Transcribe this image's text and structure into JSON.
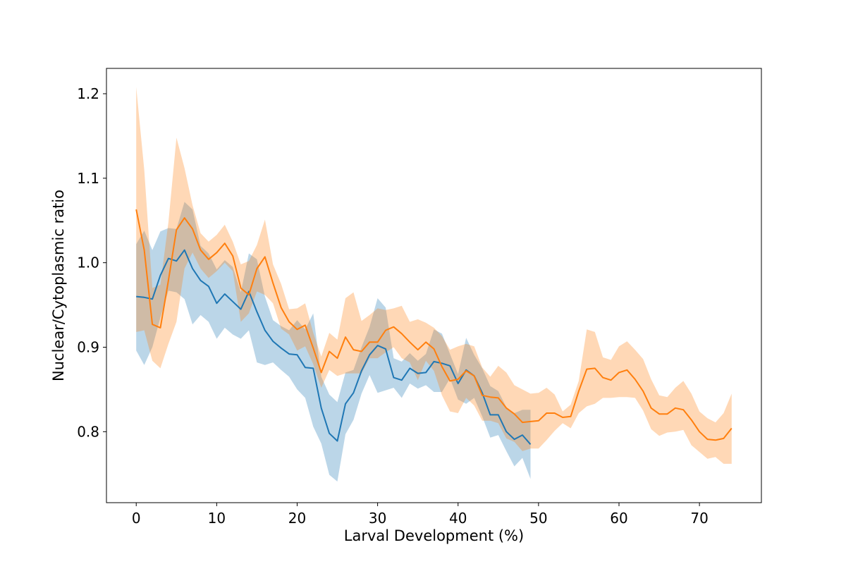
{
  "chart_data": {
    "type": "line",
    "title": "",
    "xlabel": "Larval Development (%)",
    "ylabel": "Nuclear/Cytoplasmic ratio",
    "xlim": [
      -3.7,
      77.7
    ],
    "ylim": [
      0.716,
      1.23
    ],
    "xticks": [
      0,
      10,
      20,
      30,
      40,
      50,
      60,
      70
    ],
    "yticks": [
      0.8,
      0.9,
      1.0,
      1.1,
      1.2
    ],
    "xtick_labels": [
      "0",
      "10",
      "20",
      "30",
      "40",
      "50",
      "60",
      "70"
    ],
    "ytick_labels": [
      "0.8",
      "0.9",
      "1.0",
      "1.1",
      "1.2"
    ],
    "grid": false,
    "legend": "none",
    "series": [
      {
        "color": "#1f77b4",
        "band_color": "#1f77b4",
        "band_opacity": 0.3,
        "x": [
          0,
          1,
          2,
          3,
          4,
          5,
          6,
          7,
          8,
          9,
          10,
          11,
          12,
          13,
          14,
          15,
          16,
          17,
          18,
          19,
          20,
          21,
          22,
          23,
          24,
          25,
          26,
          27,
          28,
          29,
          30,
          31,
          32,
          33,
          34,
          35,
          36,
          37,
          38,
          39,
          40,
          41,
          42,
          43,
          44,
          45,
          46,
          47,
          48,
          49
        ],
        "mean": [
          0.96,
          0.959,
          0.957,
          0.985,
          1.005,
          1.002,
          1.015,
          0.993,
          0.979,
          0.972,
          0.952,
          0.963,
          0.954,
          0.945,
          0.966,
          0.942,
          0.92,
          0.907,
          0.899,
          0.892,
          0.891,
          0.876,
          0.875,
          0.828,
          0.798,
          0.789,
          0.833,
          0.846,
          0.872,
          0.891,
          0.902,
          0.898,
          0.864,
          0.861,
          0.875,
          0.869,
          0.87,
          0.883,
          0.881,
          0.878,
          0.857,
          0.873,
          0.866,
          0.846,
          0.82,
          0.82,
          0.8,
          0.791,
          0.796,
          0.785
        ],
        "upper": [
          1.022,
          1.038,
          1.015,
          1.037,
          1.041,
          1.04,
          1.072,
          1.063,
          1.02,
          1.011,
          0.992,
          1.003,
          0.995,
          0.965,
          1.011,
          1.004,
          0.96,
          0.932,
          0.925,
          0.92,
          0.932,
          0.921,
          0.94,
          0.865,
          0.844,
          0.835,
          0.87,
          0.873,
          0.9,
          0.924,
          0.958,
          0.947,
          0.887,
          0.883,
          0.893,
          0.884,
          0.892,
          0.921,
          0.916,
          0.892,
          0.868,
          0.911,
          0.891,
          0.875,
          0.854,
          0.848,
          0.829,
          0.822,
          0.826,
          0.826
        ],
        "lower": [
          0.896,
          0.879,
          0.9,
          0.935,
          0.967,
          0.965,
          0.957,
          0.927,
          0.938,
          0.93,
          0.91,
          0.923,
          0.915,
          0.91,
          0.92,
          0.882,
          0.879,
          0.882,
          0.873,
          0.865,
          0.85,
          0.84,
          0.806,
          0.786,
          0.749,
          0.741,
          0.797,
          0.814,
          0.845,
          0.867,
          0.846,
          0.849,
          0.852,
          0.84,
          0.857,
          0.851,
          0.855,
          0.847,
          0.847,
          0.863,
          0.838,
          0.833,
          0.84,
          0.818,
          0.793,
          0.796,
          0.777,
          0.759,
          0.769,
          0.744
        ]
      },
      {
        "color": "#ff7f0e",
        "band_color": "#ff7f0e",
        "band_opacity": 0.3,
        "x": [
          0,
          1,
          2,
          3,
          4,
          5,
          6,
          7,
          8,
          9,
          10,
          11,
          12,
          13,
          14,
          15,
          16,
          17,
          18,
          19,
          20,
          21,
          22,
          23,
          24,
          25,
          26,
          27,
          28,
          29,
          30,
          31,
          32,
          33,
          34,
          35,
          36,
          37,
          38,
          39,
          40,
          41,
          42,
          43,
          44,
          45,
          46,
          47,
          48,
          49,
          50,
          51,
          52,
          53,
          54,
          55,
          56,
          57,
          58,
          59,
          60,
          61,
          62,
          63,
          64,
          65,
          66,
          67,
          68,
          69,
          70,
          71,
          72,
          73,
          74
        ],
        "mean": [
          1.063,
          1.015,
          0.927,
          0.923,
          0.979,
          1.039,
          1.053,
          1.04,
          1.015,
          1.004,
          1.012,
          1.023,
          1.008,
          0.97,
          0.962,
          0.993,
          1.007,
          0.976,
          0.947,
          0.93,
          0.921,
          0.926,
          0.899,
          0.87,
          0.895,
          0.887,
          0.912,
          0.897,
          0.895,
          0.906,
          0.906,
          0.92,
          0.924,
          0.916,
          0.906,
          0.897,
          0.906,
          0.898,
          0.877,
          0.86,
          0.862,
          0.872,
          0.866,
          0.843,
          0.841,
          0.84,
          0.828,
          0.821,
          0.811,
          0.812,
          0.813,
          0.822,
          0.822,
          0.817,
          0.818,
          0.848,
          0.874,
          0.875,
          0.864,
          0.861,
          0.87,
          0.873,
          0.862,
          0.848,
          0.828,
          0.821,
          0.821,
          0.828,
          0.826,
          0.814,
          0.8,
          0.791,
          0.79,
          0.792,
          0.804
        ],
        "upper": [
          1.208,
          1.11,
          0.97,
          0.974,
          1.048,
          1.148,
          1.112,
          1.068,
          1.035,
          1.025,
          1.033,
          1.045,
          1.025,
          0.998,
          1.002,
          1.021,
          1.051,
          0.998,
          0.975,
          0.945,
          0.946,
          0.952,
          0.917,
          0.889,
          0.917,
          0.909,
          0.958,
          0.965,
          0.931,
          0.938,
          0.946,
          0.944,
          0.946,
          0.949,
          0.93,
          0.933,
          0.929,
          0.923,
          0.913,
          0.897,
          0.901,
          0.904,
          0.901,
          0.876,
          0.865,
          0.878,
          0.87,
          0.855,
          0.85,
          0.845,
          0.846,
          0.852,
          0.844,
          0.824,
          0.832,
          0.86,
          0.921,
          0.918,
          0.888,
          0.885,
          0.901,
          0.907,
          0.897,
          0.886,
          0.862,
          0.843,
          0.841,
          0.852,
          0.86,
          0.845,
          0.824,
          0.816,
          0.811,
          0.822,
          0.845
        ],
        "lower": [
          0.918,
          0.92,
          0.884,
          0.875,
          0.904,
          0.93,
          0.993,
          1.012,
          0.993,
          0.982,
          0.99,
          1.0,
          0.99,
          0.93,
          0.94,
          0.966,
          0.962,
          0.952,
          0.922,
          0.915,
          0.896,
          0.901,
          0.88,
          0.852,
          0.873,
          0.866,
          0.869,
          0.869,
          0.869,
          0.887,
          0.887,
          0.894,
          0.9,
          0.887,
          0.882,
          0.861,
          0.884,
          0.872,
          0.843,
          0.824,
          0.822,
          0.84,
          0.831,
          0.813,
          0.813,
          0.81,
          0.792,
          0.788,
          0.777,
          0.78,
          0.78,
          0.79,
          0.801,
          0.81,
          0.804,
          0.822,
          0.83,
          0.833,
          0.84,
          0.84,
          0.841,
          0.841,
          0.84,
          0.825,
          0.803,
          0.795,
          0.799,
          0.8,
          0.802,
          0.784,
          0.776,
          0.768,
          0.77,
          0.762,
          0.762
        ]
      }
    ]
  }
}
